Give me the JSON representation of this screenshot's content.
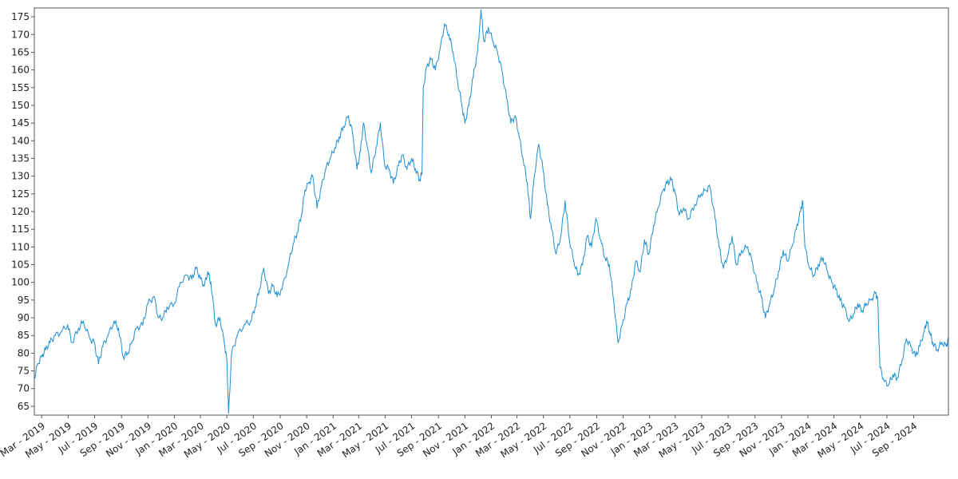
{
  "chart_data": {
    "type": "line",
    "title": "",
    "xlabel": "",
    "ylabel": "",
    "ylim": [
      62.5,
      177.5
    ],
    "xlim": [
      "2019-02-12",
      "2024-11-20"
    ],
    "grid": false,
    "y_ticks": [
      65,
      70,
      75,
      80,
      85,
      90,
      95,
      100,
      105,
      110,
      115,
      120,
      125,
      130,
      135,
      140,
      145,
      150,
      155,
      160,
      165,
      170,
      175
    ],
    "x_ticks": [
      {
        "date": "2019-03-01",
        "label": "Mar - 2019"
      },
      {
        "date": "2019-05-01",
        "label": "May - 2019"
      },
      {
        "date": "2019-07-01",
        "label": "Jul - 2019"
      },
      {
        "date": "2019-09-01",
        "label": "Sep - 2019"
      },
      {
        "date": "2019-11-01",
        "label": "Nov - 2019"
      },
      {
        "date": "2020-01-01",
        "label": "Jan - 2020"
      },
      {
        "date": "2020-03-01",
        "label": "Mar - 2020"
      },
      {
        "date": "2020-05-01",
        "label": "May - 2020"
      },
      {
        "date": "2020-07-01",
        "label": "Jul - 2020"
      },
      {
        "date": "2020-09-01",
        "label": "Sep - 2020"
      },
      {
        "date": "2020-11-01",
        "label": "Nov - 2020"
      },
      {
        "date": "2021-01-01",
        "label": "Jan - 2021"
      },
      {
        "date": "2021-03-01",
        "label": "Mar - 2021"
      },
      {
        "date": "2021-05-01",
        "label": "May - 2021"
      },
      {
        "date": "2021-07-01",
        "label": "Jul - 2021"
      },
      {
        "date": "2021-09-01",
        "label": "Sep - 2021"
      },
      {
        "date": "2021-11-01",
        "label": "Nov - 2021"
      },
      {
        "date": "2022-01-01",
        "label": "Jan - 2022"
      },
      {
        "date": "2022-03-01",
        "label": "Mar - 2022"
      },
      {
        "date": "2022-05-01",
        "label": "May - 2022"
      },
      {
        "date": "2022-07-01",
        "label": "Jul - 2022"
      },
      {
        "date": "2022-09-01",
        "label": "Sep - 2022"
      },
      {
        "date": "2022-11-01",
        "label": "Nov - 2022"
      },
      {
        "date": "2023-01-01",
        "label": "Jan - 2023"
      },
      {
        "date": "2023-03-01",
        "label": "Mar - 2023"
      },
      {
        "date": "2023-05-01",
        "label": "May - 2023"
      },
      {
        "date": "2023-07-01",
        "label": "Jul - 2023"
      },
      {
        "date": "2023-09-01",
        "label": "Sep - 2023"
      },
      {
        "date": "2023-11-01",
        "label": "Nov - 2023"
      },
      {
        "date": "2024-01-01",
        "label": "Jan - 2024"
      },
      {
        "date": "2024-03-01",
        "label": "Mar - 2024"
      },
      {
        "date": "2024-05-01",
        "label": "May - 2024"
      },
      {
        "date": "2024-07-01",
        "label": "Jul - 2024"
      },
      {
        "date": "2024-09-01",
        "label": "Sep - 2024"
      }
    ],
    "series": [
      {
        "color": "#1a8fd6",
        "points": [
          [
            "2019-02-12",
            73
          ],
          [
            "2019-02-20",
            77
          ],
          [
            "2019-03-01",
            79
          ],
          [
            "2019-03-10",
            81
          ],
          [
            "2019-03-20",
            83
          ],
          [
            "2019-04-01",
            85
          ],
          [
            "2019-04-15",
            86
          ],
          [
            "2019-04-30",
            88
          ],
          [
            "2019-05-10",
            83
          ],
          [
            "2019-05-25",
            87
          ],
          [
            "2019-06-05",
            89
          ],
          [
            "2019-06-20",
            84
          ],
          [
            "2019-06-30",
            83
          ],
          [
            "2019-07-10",
            77
          ],
          [
            "2019-07-20",
            82
          ],
          [
            "2019-08-01",
            85
          ],
          [
            "2019-08-15",
            89
          ],
          [
            "2019-08-25",
            87
          ],
          [
            "2019-09-05",
            79
          ],
          [
            "2019-09-15",
            80
          ],
          [
            "2019-09-25",
            83
          ],
          [
            "2019-10-05",
            87
          ],
          [
            "2019-10-20",
            88
          ],
          [
            "2019-11-01",
            94
          ],
          [
            "2019-11-15",
            96
          ],
          [
            "2019-11-25",
            90
          ],
          [
            "2019-12-05",
            90
          ],
          [
            "2019-12-15",
            93
          ],
          [
            "2020-01-01",
            94
          ],
          [
            "2020-01-15",
            100
          ],
          [
            "2020-01-30",
            102
          ],
          [
            "2020-02-10",
            101
          ],
          [
            "2020-02-20",
            104
          ],
          [
            "2020-03-01",
            101
          ],
          [
            "2020-03-10",
            99
          ],
          [
            "2020-03-18",
            103
          ],
          [
            "2020-03-25",
            100
          ],
          [
            "2020-04-05",
            88
          ],
          [
            "2020-04-15",
            90
          ],
          [
            "2020-04-25",
            83
          ],
          [
            "2020-05-01",
            78
          ],
          [
            "2020-05-05",
            63
          ],
          [
            "2020-05-12",
            80
          ],
          [
            "2020-05-25",
            85
          ],
          [
            "2020-06-10",
            88
          ],
          [
            "2020-06-25",
            89
          ],
          [
            "2020-07-05",
            93
          ],
          [
            "2020-07-15",
            98
          ],
          [
            "2020-07-25",
            104
          ],
          [
            "2020-08-05",
            97
          ],
          [
            "2020-08-15",
            99
          ],
          [
            "2020-08-25",
            96
          ],
          [
            "2020-09-05",
            98
          ],
          [
            "2020-09-20",
            105
          ],
          [
            "2020-10-01",
            111
          ],
          [
            "2020-10-10",
            114
          ],
          [
            "2020-10-20",
            119
          ],
          [
            "2020-10-28",
            126
          ],
          [
            "2020-11-05",
            128
          ],
          [
            "2020-11-15",
            130
          ],
          [
            "2020-11-25",
            121
          ],
          [
            "2020-12-05",
            127
          ],
          [
            "2020-12-15",
            132
          ],
          [
            "2020-12-25",
            135
          ],
          [
            "2021-01-05",
            138
          ],
          [
            "2021-01-15",
            141
          ],
          [
            "2021-01-25",
            144
          ],
          [
            "2021-02-05",
            147
          ],
          [
            "2021-02-15",
            142
          ],
          [
            "2021-02-25",
            132
          ],
          [
            "2021-03-05",
            137
          ],
          [
            "2021-03-12",
            145
          ],
          [
            "2021-03-20",
            139
          ],
          [
            "2021-03-30",
            131
          ],
          [
            "2021-04-10",
            138
          ],
          [
            "2021-04-20",
            145
          ],
          [
            "2021-04-30",
            133
          ],
          [
            "2021-05-10",
            132
          ],
          [
            "2021-05-20",
            128
          ],
          [
            "2021-06-01",
            133
          ],
          [
            "2021-06-10",
            136
          ],
          [
            "2021-06-20",
            132
          ],
          [
            "2021-07-01",
            135
          ],
          [
            "2021-07-10",
            132
          ],
          [
            "2021-07-20",
            129
          ],
          [
            "2021-07-25",
            131
          ],
          [
            "2021-07-28",
            155
          ],
          [
            "2021-08-05",
            161
          ],
          [
            "2021-08-15",
            163
          ],
          [
            "2021-08-25",
            160
          ],
          [
            "2021-09-05",
            166
          ],
          [
            "2021-09-15",
            173
          ],
          [
            "2021-09-25",
            170
          ],
          [
            "2021-10-05",
            165
          ],
          [
            "2021-10-15",
            157
          ],
          [
            "2021-10-25",
            150
          ],
          [
            "2021-11-01",
            145
          ],
          [
            "2021-11-10",
            150
          ],
          [
            "2021-11-20",
            158
          ],
          [
            "2021-11-30",
            165
          ],
          [
            "2021-12-05",
            172
          ],
          [
            "2021-12-08",
            177
          ],
          [
            "2021-12-15",
            168
          ],
          [
            "2021-12-25",
            172
          ],
          [
            "2022-01-05",
            168
          ],
          [
            "2022-01-15",
            165
          ],
          [
            "2022-01-25",
            160
          ],
          [
            "2022-02-05",
            152
          ],
          [
            "2022-02-15",
            145
          ],
          [
            "2022-02-25",
            147
          ],
          [
            "2022-03-05",
            142
          ],
          [
            "2022-03-15",
            135
          ],
          [
            "2022-03-25",
            128
          ],
          [
            "2022-04-01",
            118
          ],
          [
            "2022-04-10",
            130
          ],
          [
            "2022-04-20",
            139
          ],
          [
            "2022-04-30",
            132
          ],
          [
            "2022-05-10",
            122
          ],
          [
            "2022-05-20",
            115
          ],
          [
            "2022-05-30",
            108
          ],
          [
            "2022-06-10",
            113
          ],
          [
            "2022-06-20",
            123
          ],
          [
            "2022-06-30",
            112
          ],
          [
            "2022-07-10",
            106
          ],
          [
            "2022-07-20",
            102
          ],
          [
            "2022-07-30",
            105
          ],
          [
            "2022-08-10",
            113
          ],
          [
            "2022-08-20",
            110
          ],
          [
            "2022-08-30",
            118
          ],
          [
            "2022-09-10",
            112
          ],
          [
            "2022-09-20",
            107
          ],
          [
            "2022-09-30",
            105
          ],
          [
            "2022-10-10",
            95
          ],
          [
            "2022-10-20",
            83
          ],
          [
            "2022-10-30",
            88
          ],
          [
            "2022-11-10",
            94
          ],
          [
            "2022-11-20",
            98
          ],
          [
            "2022-11-30",
            106
          ],
          [
            "2022-12-10",
            103
          ],
          [
            "2022-12-20",
            112
          ],
          [
            "2022-12-30",
            108
          ],
          [
            "2023-01-10",
            116
          ],
          [
            "2023-01-20",
            121
          ],
          [
            "2023-02-01",
            126
          ],
          [
            "2023-02-10",
            128
          ],
          [
            "2023-02-20",
            129
          ],
          [
            "2023-03-01",
            125
          ],
          [
            "2023-03-10",
            119
          ],
          [
            "2023-03-20",
            121
          ],
          [
            "2023-04-01",
            118
          ],
          [
            "2023-04-15",
            122
          ],
          [
            "2023-04-30",
            125
          ],
          [
            "2023-05-10",
            126
          ],
          [
            "2023-05-20",
            127
          ],
          [
            "2023-06-01",
            118
          ],
          [
            "2023-06-10",
            110
          ],
          [
            "2023-06-20",
            104
          ],
          [
            "2023-07-01",
            108
          ],
          [
            "2023-07-10",
            113
          ],
          [
            "2023-07-20",
            105
          ],
          [
            "2023-08-01",
            109
          ],
          [
            "2023-08-15",
            110
          ],
          [
            "2023-08-25",
            106
          ],
          [
            "2023-09-05",
            100
          ],
          [
            "2023-09-15",
            96
          ],
          [
            "2023-09-25",
            90
          ],
          [
            "2023-10-05",
            94
          ],
          [
            "2023-10-15",
            98
          ],
          [
            "2023-10-25",
            103
          ],
          [
            "2023-11-05",
            109
          ],
          [
            "2023-11-15",
            106
          ],
          [
            "2023-11-25",
            110
          ],
          [
            "2023-12-05",
            115
          ],
          [
            "2023-12-15",
            120
          ],
          [
            "2023-12-20",
            123
          ],
          [
            "2023-12-25",
            110
          ],
          [
            "2024-01-05",
            104
          ],
          [
            "2024-01-15",
            102
          ],
          [
            "2024-01-25",
            105
          ],
          [
            "2024-02-05",
            107
          ],
          [
            "2024-02-15",
            103
          ],
          [
            "2024-02-25",
            100
          ],
          [
            "2024-03-05",
            98
          ],
          [
            "2024-03-15",
            95
          ],
          [
            "2024-03-25",
            93
          ],
          [
            "2024-04-05",
            89
          ],
          [
            "2024-04-15",
            91
          ],
          [
            "2024-04-25",
            94
          ],
          [
            "2024-05-05",
            92
          ],
          [
            "2024-05-15",
            94
          ],
          [
            "2024-05-25",
            95
          ],
          [
            "2024-06-05",
            97
          ],
          [
            "2024-06-10",
            95
          ],
          [
            "2024-06-15",
            76
          ],
          [
            "2024-06-25",
            72
          ],
          [
            "2024-07-05",
            71
          ],
          [
            "2024-07-15",
            74
          ],
          [
            "2024-07-25",
            73
          ],
          [
            "2024-08-05",
            78
          ],
          [
            "2024-08-15",
            84
          ],
          [
            "2024-08-25",
            82
          ],
          [
            "2024-09-05",
            79
          ],
          [
            "2024-09-15",
            82
          ],
          [
            "2024-09-25",
            86
          ],
          [
            "2024-10-01",
            89
          ],
          [
            "2024-10-08",
            86
          ],
          [
            "2024-10-15",
            83
          ],
          [
            "2024-10-25",
            81
          ],
          [
            "2024-11-05",
            83
          ],
          [
            "2024-11-15",
            82
          ],
          [
            "2024-11-20",
            84
          ]
        ]
      }
    ]
  }
}
